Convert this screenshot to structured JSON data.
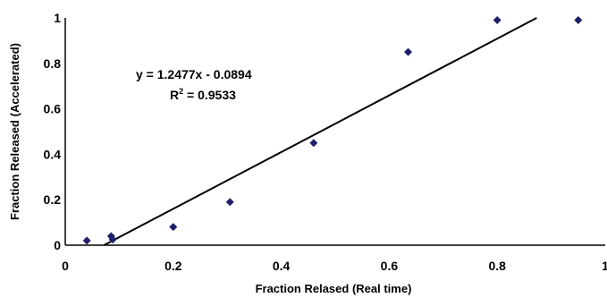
{
  "chart_data": {
    "type": "scatter",
    "title": "",
    "xlabel": "Fraction Relased (Real time)",
    "ylabel": "Fraction Released (Accelerated)",
    "xlim": [
      0,
      1
    ],
    "ylim": [
      0,
      1
    ],
    "xticks": [
      "0",
      "0.2",
      "0.4",
      "0.6",
      "0.8",
      "1"
    ],
    "yticks": [
      "0",
      "0.2",
      "0.4",
      "0.6",
      "0.8",
      "1"
    ],
    "grid": false,
    "legend": "none",
    "marker_color": "#1f1f6b",
    "marker_shape": "diamond",
    "points": [
      {
        "x": 0.04,
        "y": 0.02
      },
      {
        "x": 0.085,
        "y": 0.04
      },
      {
        "x": 0.088,
        "y": 0.025
      },
      {
        "x": 0.2,
        "y": 0.08
      },
      {
        "x": 0.305,
        "y": 0.19
      },
      {
        "x": 0.46,
        "y": 0.45
      },
      {
        "x": 0.635,
        "y": 0.85
      },
      {
        "x": 0.8,
        "y": 0.99
      },
      {
        "x": 0.95,
        "y": 0.99
      }
    ],
    "trendline": {
      "slope": 1.2477,
      "intercept": -0.0894,
      "equation": "y = 1.2477x - 0.0894",
      "r2_label": "R",
      "r2_sup": "2",
      "r2_value": " = 0.9533"
    }
  }
}
